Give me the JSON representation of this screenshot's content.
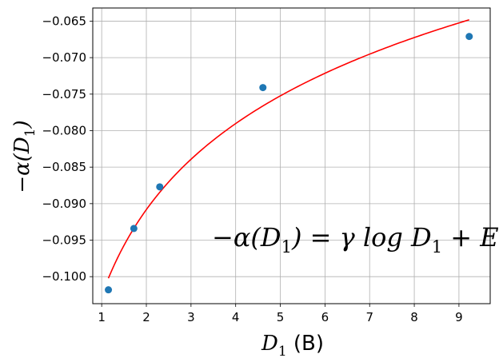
{
  "chart_data": {
    "type": "scatter",
    "xlabel": "D",
    "xlabel_sub": "1",
    "xlabel_unit": "(B)",
    "ylabel": "−α(D",
    "ylabel_sub": "1",
    "ylabel_close": ")",
    "xlim": [
      0.8,
      9.7
    ],
    "ylim": [
      -0.1037,
      -0.0632
    ],
    "xticks": [
      1,
      2,
      3,
      4,
      5,
      6,
      7,
      8,
      9
    ],
    "yticks": [
      -0.1,
      -0.095,
      -0.09,
      -0.085,
      -0.08,
      -0.075,
      -0.07,
      -0.065
    ],
    "ytick_labels": [
      "−0.100",
      "−0.095",
      "−0.090",
      "−0.085",
      "−0.080",
      "−0.075",
      "−0.070",
      "−0.065"
    ],
    "grid": true,
    "series": [
      {
        "kind": "points",
        "color": "#1f77b4",
        "x": [
          1.15,
          1.72,
          2.3,
          4.61,
          9.23
        ],
        "y": [
          -0.1018,
          -0.0934,
          -0.0877,
          -0.0741,
          -0.0671
        ]
      },
      {
        "kind": "fit",
        "color": "#ff0000",
        "x_range": [
          1.15,
          9.23
        ],
        "fit": {
          "gamma": 0.017,
          "E": -0.1026
        }
      }
    ],
    "annotation": {
      "lhs": "−α(D",
      "sub": "1",
      "rhs": ") = γ log D",
      "sub2": "1",
      "tail": " + E′"
    }
  }
}
